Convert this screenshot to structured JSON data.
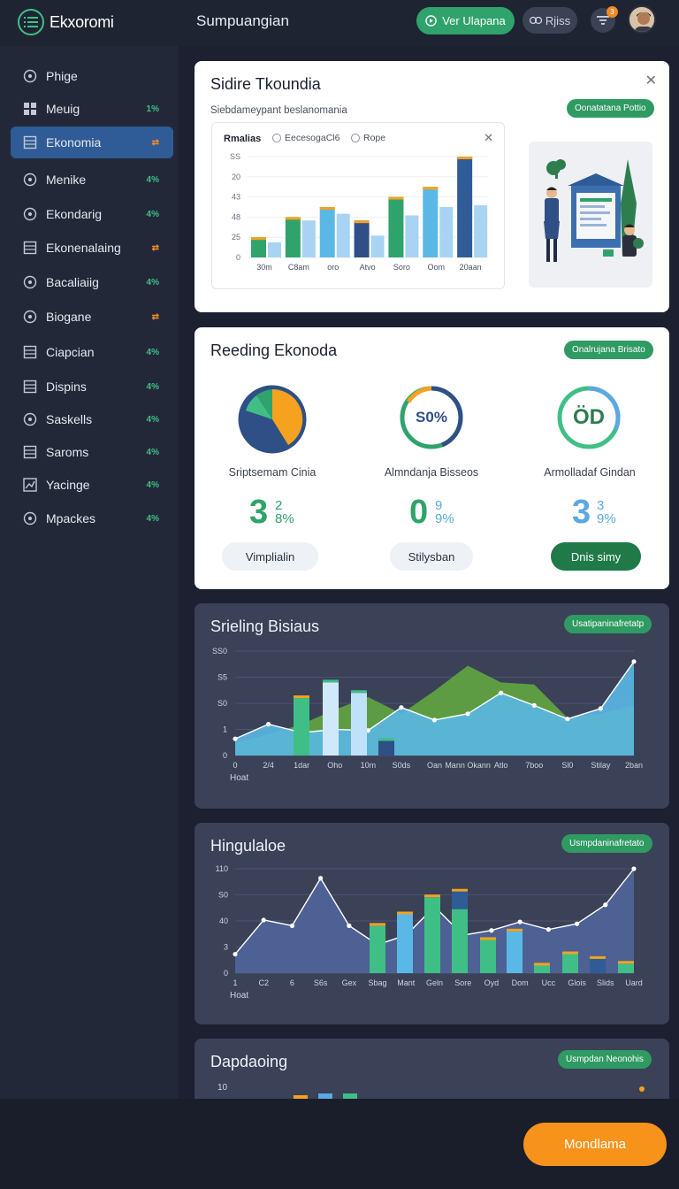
{
  "app": {
    "name": "Ekxoromi"
  },
  "header": {
    "title": "Sumpuangian",
    "primary_button": "Ver Ulapana",
    "ghost_button": "Rjiss",
    "notification_count": "3"
  },
  "sidebar": {
    "items": [
      {
        "label": "Phige",
        "badge": "",
        "icon": "circle-icon"
      },
      {
        "label": "Meuig",
        "badge": "1%",
        "icon": "grid-icon"
      },
      {
        "label": "Ekonomia",
        "badge": "⇄",
        "icon": "square-icon",
        "active": true
      },
      {
        "label": "Menike",
        "badge": "4%",
        "icon": "circle-icon"
      },
      {
        "label": "Ekondarig",
        "badge": "4%",
        "icon": "circle-icon"
      },
      {
        "label": "Ekonenalaing",
        "badge": "⇄",
        "icon": "square-icon"
      },
      {
        "label": "Bacaliaiig",
        "badge": "4%",
        "icon": "circle-icon"
      },
      {
        "label": "Biogane",
        "badge": "⇄",
        "icon": "circle-icon"
      },
      {
        "label": "Ciapcian",
        "badge": "4%",
        "icon": "square-icon"
      },
      {
        "label": "Dispins",
        "badge": "4%",
        "icon": "square-icon"
      },
      {
        "label": "Saskells",
        "badge": "4%",
        "icon": "circle-icon"
      },
      {
        "label": "Saroms",
        "badge": "4%",
        "icon": "square-icon"
      },
      {
        "label": "Yacinge",
        "badge": "4%",
        "icon": "chart-icon"
      },
      {
        "label": "Mpackes",
        "badge": "4%",
        "icon": "circle-icon"
      }
    ],
    "colors": {
      "green": "#3fbf86",
      "orange": "#f08a24"
    }
  },
  "card1": {
    "title": "Sidire Tkoundia",
    "subtitle": "Siebdameypant beslanomania",
    "pill": "Oonatatana Pottio",
    "chart_header": "Rmalias",
    "legend": [
      "EecesogaCl6",
      "Rope"
    ]
  },
  "card2": {
    "title": "Reeding Ekonoda",
    "pill": "Onalrujana Brisato",
    "rings": [
      {
        "label": "Sriptsemam Cinia",
        "center": "",
        "big": "3",
        "small": "2\n8%",
        "button": "Vimplialin"
      },
      {
        "label": "Almndanja Bisseos",
        "center": "S0%",
        "big": "0",
        "small": "9\n9%",
        "button": "Stilysban"
      },
      {
        "label": "Armolladaf Gindan",
        "center": "ÖD",
        "big": "3",
        "small": "3\n9%",
        "button": "Dnis simy"
      }
    ]
  },
  "card3": {
    "title": "Srieling Bisiaus",
    "pill": "Usatipaninafretatp",
    "xlabel": "Hoat"
  },
  "card4": {
    "title": "Hingulaloe",
    "pill": "Usmpdaninafretato",
    "xlabel": "Hoat"
  },
  "card5": {
    "title": "Dapdaoing",
    "pill": "Usmpdan Neonohis",
    "ytick": "10"
  },
  "cta": {
    "label": "Mondlama"
  },
  "chart_data": [
    {
      "type": "bar",
      "title": "",
      "categories": [
        "30m",
        "C8am",
        "oro",
        "Atvo",
        "Soro",
        "Oom",
        "20aan"
      ],
      "yticks": [
        "SS",
        "20",
        "43",
        "48",
        "25",
        "0"
      ],
      "series": [
        {
          "values": [
            12,
            24,
            30,
            22,
            36,
            42,
            60
          ]
        },
        {
          "values": [
            9,
            22,
            26,
            13,
            25,
            30,
            31
          ]
        }
      ],
      "ylim": [
        0,
        60
      ]
    },
    {
      "type": "area",
      "title": "",
      "x": [
        "0",
        "2/4",
        "1dar",
        "Oho",
        "10m",
        "S0ds",
        "Oan",
        "Mann Okann",
        "Atlo",
        "7boo",
        "Sl0",
        "Stilay",
        "2ban"
      ],
      "yticks": [
        "SS0",
        "S5",
        "S0",
        "1",
        "0"
      ],
      "series": [
        {
          "values": [
            16,
            30,
            22,
            25,
            24,
            46,
            34,
            40,
            60,
            48,
            35,
            45,
            90
          ]
        },
        {
          "values": [
            12,
            20,
            30,
            44,
            56,
            40,
            62,
            86,
            70,
            68,
            36,
            40,
            48
          ]
        }
      ],
      "bars": [
        55,
        70,
        60,
        14
      ],
      "ylim": [
        0,
        100
      ]
    },
    {
      "type": "area",
      "title": "",
      "x": [
        "1",
        "C2",
        "6",
        "S6s",
        "Gex",
        "Sbag",
        "Mant",
        "Geln",
        "Sore",
        "Oyd",
        "Dom",
        "Ucc",
        "Glois",
        "Slids",
        "Uard"
      ],
      "yticks": [
        "110",
        "S0",
        "40",
        "3",
        "0"
      ],
      "series": [
        {
          "values": [
            20,
            56,
            50,
            100,
            50,
            30,
            40,
            70,
            40,
            45,
            54,
            46,
            52,
            72,
            110
          ]
        }
      ],
      "bars": [
        50,
        62,
        80,
        86,
        35,
        44,
        8,
        20,
        15,
        10
      ],
      "ylim": [
        0,
        110
      ]
    }
  ]
}
